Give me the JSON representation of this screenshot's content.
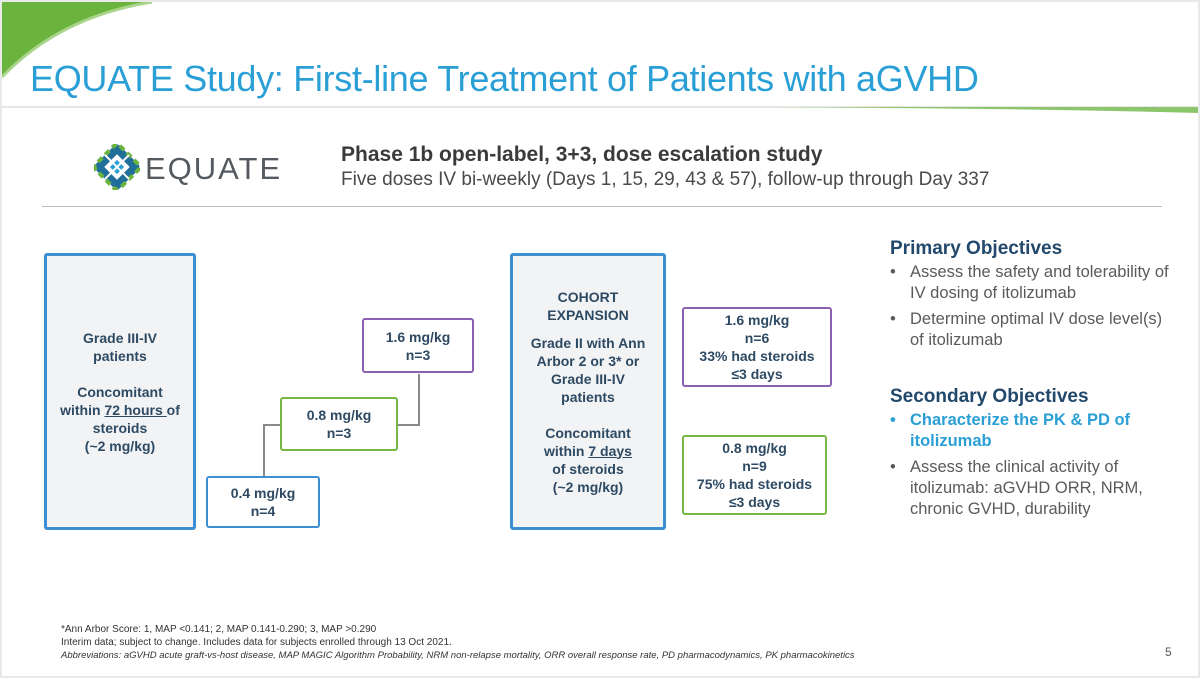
{
  "slide": {
    "title": "EQUATE Study: First-line Treatment of Patients with aGVHD",
    "logo_text": "EQUATE",
    "phase_title": "Phase 1b open-label, 3+3, dose escalation study",
    "phase_subtitle": "Five doses IV bi-weekly (Days 1, 15, 29, 43 & 57), follow-up through Day 337",
    "page_number": "5"
  },
  "left_panel": {
    "line1": "Grade III-IV",
    "line2": "patients",
    "line3": "Concomitant",
    "line4_a": "within ",
    "line4_u": "72 hours ",
    "line4_b": "of",
    "line5": "steroids",
    "line6": "(~2 mg/kg)"
  },
  "dose_steps": [
    {
      "dose": "0.4 mg/kg",
      "n": "n=4"
    },
    {
      "dose": "0.8 mg/kg",
      "n": "n=3"
    },
    {
      "dose": "1.6 mg/kg",
      "n": "n=3"
    }
  ],
  "cohort_panel": {
    "line1": "COHORT",
    "line2": "EXPANSION",
    "line3": "Grade II with Ann",
    "line4": "Arbor 2 or 3* or",
    "line5": "Grade III-IV",
    "line6": "patients",
    "line7": "Concomitant",
    "line8_a": "within ",
    "line8_u": "7 days",
    "line9": "of steroids",
    "line10": "(~2 mg/kg)"
  },
  "expansion_results": [
    {
      "dose": "1.6 mg/kg",
      "n": "n=6",
      "steroids": "33% had steroids",
      "days": "≤3 days"
    },
    {
      "dose": "0.8 mg/kg",
      "n": "n=9",
      "steroids": "75% had steroids",
      "days": "≤3 days"
    }
  ],
  "objectives": {
    "primary_title": "Primary Objectives",
    "primary": [
      "Assess the safety and tolerability of IV dosing of itolizumab",
      "Determine optimal IV dose level(s) of itolizumab"
    ],
    "secondary_title": "Secondary Objectives",
    "secondary": [
      "Characterize the PK & PD of itolizumab",
      "Assess the clinical activity of itolizumab: aGVHD ORR, NRM, chronic GVHD, durability"
    ]
  },
  "footnotes": {
    "ann_arbor": "*Ann Arbor Score: 1, MAP <0.141; 2, MAP 0.141-0.290; 3, MAP >0.290",
    "interim": "Interim data; subject to change. Includes data for subjects enrolled through 13 Oct 2021.",
    "abbreviations": "Abbreviations: aGVHD acute graft-vs-host disease, MAP MAGIC Algorithm Probability, NRM non-relapse mortality, ORR overall response rate, PD pharmacodynamics, PK pharmacokinetics"
  },
  "colors": {
    "title": "#2a9fd6",
    "heading": "#22496b",
    "box_blue": "#3d8fd2",
    "box_green": "#75b843",
    "box_purple": "#8c5fb0",
    "swoosh_green": "#6ab43e"
  }
}
